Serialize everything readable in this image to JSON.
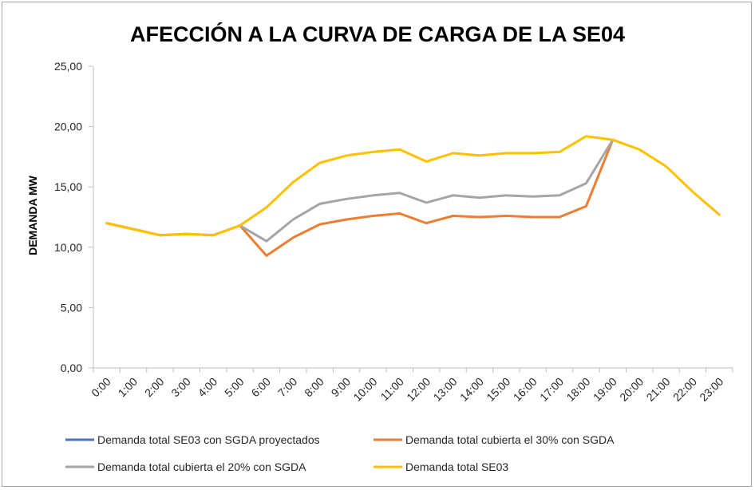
{
  "chart_data": {
    "type": "line",
    "title": "AFECCIÓN A LA CURVA DE CARGA DE LA SE04",
    "xlabel": "",
    "ylabel": "DEMANDA MW",
    "ylim": [
      0,
      25
    ],
    "yticks": [
      "0,00",
      "5,00",
      "10,00",
      "15,00",
      "20,00",
      "25,00"
    ],
    "ytick_values": [
      0,
      5,
      10,
      15,
      20,
      25
    ],
    "categories": [
      "0:00",
      "1:00",
      "2:00",
      "3:00",
      "4:00",
      "5:00",
      "6:00",
      "7:00",
      "8:00",
      "9:00",
      "10:00",
      "11:00",
      "12:00",
      "13:00",
      "14:00",
      "15:00",
      "16:00",
      "17:00",
      "18:00",
      "19:00",
      "20:00",
      "21:00",
      "22:00",
      "23:00"
    ],
    "series": [
      {
        "name": "Demanda total SE03 con SGDA proyectados",
        "color": "#4472c4",
        "values": [
          null,
          null,
          null,
          null,
          null,
          null,
          null,
          null,
          null,
          null,
          null,
          null,
          null,
          null,
          null,
          null,
          null,
          null,
          null,
          null,
          null,
          null,
          null,
          null
        ]
      },
      {
        "name": "Demanda total cubierta  el 30% con SGDA",
        "color": "#ed7d31",
        "values": [
          12.0,
          11.5,
          11.0,
          11.1,
          11.0,
          11.8,
          9.3,
          10.8,
          11.9,
          12.3,
          12.6,
          12.8,
          12.0,
          12.6,
          12.5,
          12.6,
          12.5,
          12.5,
          13.4,
          18.9,
          null,
          null,
          null,
          null
        ]
      },
      {
        "name": "Demanda total cubierta  el 20% con SGDA",
        "color": "#a5a5a5",
        "values": [
          12.0,
          11.5,
          11.0,
          11.1,
          11.0,
          11.8,
          10.5,
          12.3,
          13.6,
          14.0,
          14.3,
          14.5,
          13.7,
          14.3,
          14.1,
          14.3,
          14.2,
          14.3,
          15.3,
          18.9,
          null,
          null,
          null,
          null
        ]
      },
      {
        "name": "Demanda total SE03",
        "color": "#ffc000",
        "values": [
          12.0,
          11.5,
          11.0,
          11.1,
          11.0,
          11.8,
          13.3,
          15.4,
          17.0,
          17.6,
          17.9,
          18.1,
          17.1,
          17.8,
          17.6,
          17.8,
          17.8,
          17.9,
          19.2,
          18.9,
          18.1,
          16.7,
          14.6,
          12.7
        ]
      }
    ],
    "legend": "bottom"
  }
}
